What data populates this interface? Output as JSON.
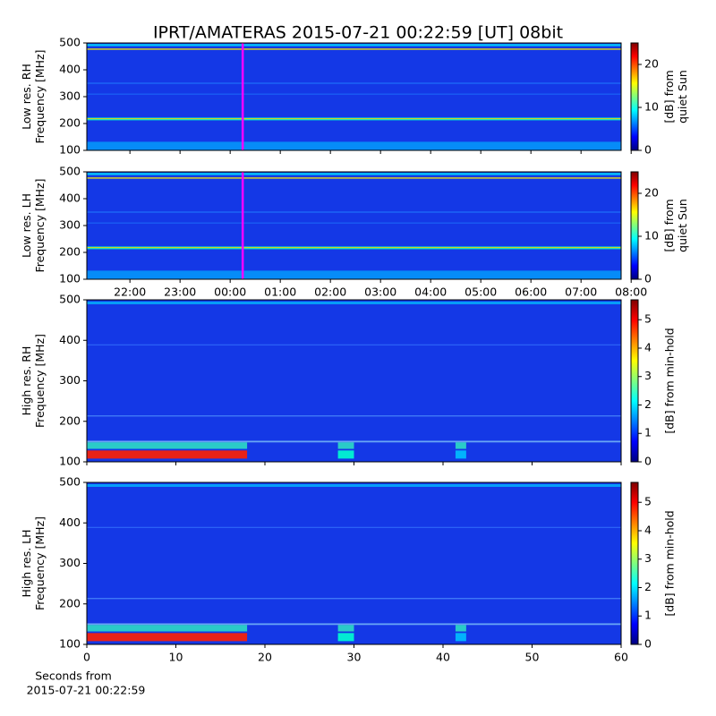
{
  "title": "IPRT/AMATERAS 2015-07-21 00:22:59 [UT]   08bit",
  "xlabel": [
    "Seconds from",
    "2015-07-21 00:22:59"
  ],
  "chart_data": [
    {
      "type": "spectrogram",
      "ylabel": [
        "Low res. RH",
        "Frequency [MHz]"
      ],
      "xlim": [
        21.14,
        31.8
      ],
      "xticks": [
        {
          "value": 22,
          "label": "22:00"
        },
        {
          "value": 23,
          "label": "23:00"
        },
        {
          "value": 24,
          "label": "00:00"
        },
        {
          "value": 25,
          "label": "01:00"
        },
        {
          "value": 26,
          "label": "02:00"
        },
        {
          "value": 27,
          "label": "03:00"
        },
        {
          "value": 28,
          "label": "04:00"
        },
        {
          "value": 29,
          "label": "05:00"
        },
        {
          "value": 30,
          "label": "06:00"
        },
        {
          "value": 31,
          "label": "07:00"
        },
        {
          "value": 32,
          "label": "08:00"
        }
      ],
      "xticklabels": false,
      "ylim": [
        100,
        500
      ],
      "yticks": [
        100,
        200,
        300,
        400,
        500
      ],
      "marker": {
        "x": 24.25,
        "color": "#ff00ff"
      },
      "colormap": "jet",
      "clim": [
        0,
        25
      ],
      "cticks": [
        0,
        10,
        20
      ],
      "clabel": [
        "[dB] from",
        "quiet Sun"
      ]
    },
    {
      "type": "spectrogram",
      "ylabel": [
        "Low res. LH",
        "Frequency [MHz]"
      ],
      "xlim": [
        21.14,
        31.8
      ],
      "xticks": [
        {
          "value": 22,
          "label": "22:00"
        },
        {
          "value": 23,
          "label": "23:00"
        },
        {
          "value": 24,
          "label": "00:00"
        },
        {
          "value": 25,
          "label": "01:00"
        },
        {
          "value": 26,
          "label": "02:00"
        },
        {
          "value": 27,
          "label": "03:00"
        },
        {
          "value": 28,
          "label": "04:00"
        },
        {
          "value": 29,
          "label": "05:00"
        },
        {
          "value": 30,
          "label": "06:00"
        },
        {
          "value": 31,
          "label": "07:00"
        },
        {
          "value": 32,
          "label": "08:00"
        }
      ],
      "xticklabels": true,
      "ylim": [
        100,
        500
      ],
      "yticks": [
        100,
        200,
        300,
        400,
        500
      ],
      "marker": {
        "x": 24.25,
        "color": "#ff00ff"
      },
      "colormap": "jet",
      "clim": [
        0,
        25
      ],
      "cticks": [
        0,
        10,
        20
      ],
      "clabel": [
        "[dB] from",
        "quiet Sun"
      ]
    },
    {
      "type": "spectrogram",
      "ylabel": [
        "High res. RH",
        "Frequency [MHz]"
      ],
      "xlim": [
        0,
        60
      ],
      "xticks": [
        0,
        10,
        20,
        30,
        40,
        50,
        60
      ],
      "xticklabels": false,
      "ylim": [
        100,
        500
      ],
      "yticks": [
        100,
        200,
        300,
        400,
        500
      ],
      "colormap": "jet",
      "clim": [
        0,
        5.7
      ],
      "cticks": [
        0,
        1,
        2,
        3,
        4,
        5
      ],
      "clabel": [
        "[dB] from min-hold"
      ]
    },
    {
      "type": "spectrogram",
      "ylabel": [
        "High res. LH",
        "Frequency [MHz]"
      ],
      "xlim": [
        0,
        60
      ],
      "xticks": [
        0,
        10,
        20,
        30,
        40,
        50,
        60
      ],
      "xticklabels": true,
      "ylim": [
        100,
        500
      ],
      "yticks": [
        100,
        200,
        300,
        400,
        500
      ],
      "colormap": "jet",
      "clim": [
        0,
        5.7
      ],
      "cticks": [
        0,
        1,
        2,
        3,
        4,
        5
      ],
      "clabel": [
        "[dB] from min-hold"
      ]
    }
  ]
}
